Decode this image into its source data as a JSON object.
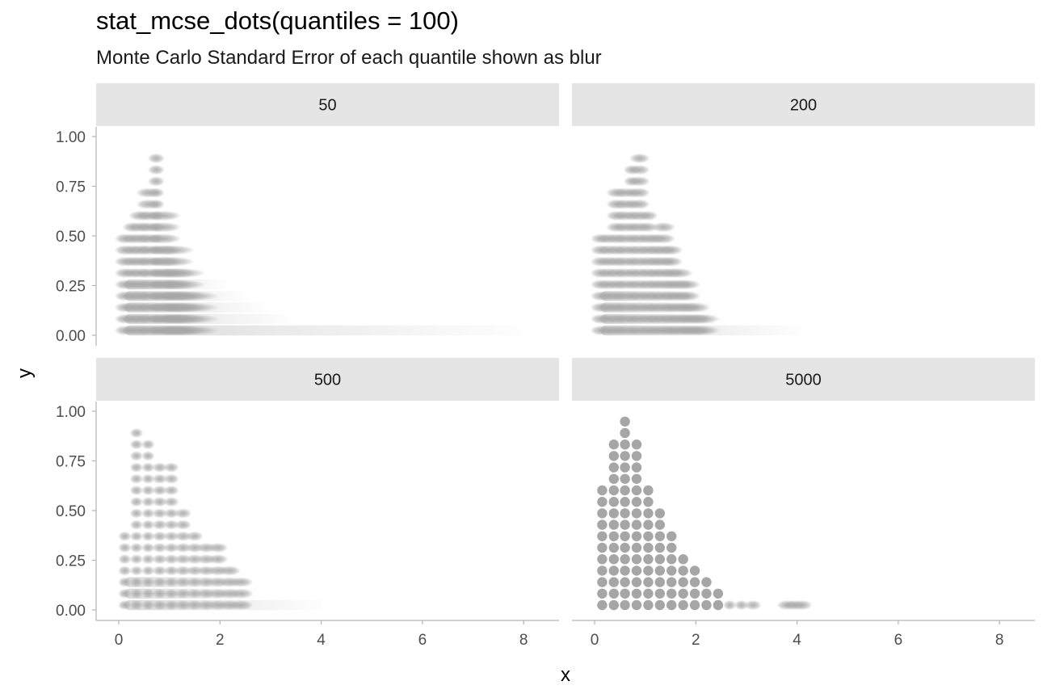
{
  "title": "stat_mcse_dots(quantiles = 100)",
  "subtitle": "Monte Carlo Standard Error of each quantile shown as blur",
  "chart_data": {
    "type": "dotplot",
    "facets": [
      {
        "label": "50",
        "column_x": [
          0.12,
          0.27,
          0.43,
          0.58,
          0.74,
          0.89,
          1.05,
          1.2,
          1.36
        ],
        "column_counts": [
          9,
          10,
          11,
          13,
          16,
          11,
          8,
          6,
          4
        ],
        "column_blur": [
          0.3,
          0.3,
          0.4,
          0.4,
          0.2,
          0.7,
          1.0,
          1.2,
          1.5
        ],
        "tail_rows": [
          {
            "row": 0,
            "x_end": 8.3
          },
          {
            "row": 1,
            "x_end": 3.5
          },
          {
            "row": 2,
            "x_end": 3.0
          },
          {
            "row": 3,
            "x_end": 2.6
          },
          {
            "row": 4,
            "x_end": 2.2
          }
        ]
      },
      {
        "label": "200",
        "column_x": [
          0.12,
          0.27,
          0.43,
          0.58,
          0.74,
          0.89,
          1.05,
          1.2,
          1.36,
          1.51,
          1.67,
          1.82,
          1.98,
          2.13
        ],
        "column_counts": [
          9,
          9,
          13,
          13,
          15,
          16,
          11,
          9,
          10,
          8,
          6,
          5,
          3,
          2
        ],
        "column_blur": [
          0.3,
          0.3,
          0.3,
          0.3,
          0.2,
          0.3,
          0.3,
          0.3,
          0.4,
          0.4,
          0.5,
          0.5,
          0.6,
          0.7
        ],
        "tail_rows": [
          {
            "row": 0,
            "x_end": 4.3
          },
          {
            "row": 1,
            "x_end": 2.6
          },
          {
            "row": 2,
            "x_end": 2.4
          },
          {
            "row": 3,
            "x_end": 2.2
          }
        ]
      },
      {
        "label": "500",
        "column_x": [
          0.12,
          0.35,
          0.58,
          0.81,
          1.04,
          1.27,
          1.5,
          1.73,
          1.96,
          2.19,
          2.42
        ],
        "column_counts": [
          7,
          16,
          15,
          13,
          13,
          9,
          7,
          6,
          6,
          4,
          3
        ],
        "column_blur": [
          0.1,
          0.1,
          0.1,
          0.15,
          0.15,
          0.2,
          0.2,
          0.25,
          0.3,
          0.35,
          0.4
        ],
        "tail_rows": [
          {
            "row": 0,
            "x_end": 4.2
          },
          {
            "row": 1,
            "x_end": 2.8
          },
          {
            "row": 2,
            "x_end": 2.5
          }
        ]
      },
      {
        "label": "5000",
        "column_x": [
          0.15,
          0.38,
          0.6,
          0.83,
          1.06,
          1.29,
          1.52,
          1.75,
          1.98,
          2.21,
          2.44,
          2.67,
          2.9,
          3.13,
          3.8,
          3.95,
          4.1
        ],
        "column_counts": [
          11,
          15,
          17,
          15,
          11,
          9,
          7,
          5,
          4,
          3,
          2,
          1,
          1,
          1,
          1,
          1,
          1
        ],
        "column_blur": [
          0.02,
          0.02,
          0.02,
          0.02,
          0.02,
          0.03,
          0.03,
          0.04,
          0.05,
          0.06,
          0.08,
          0.1,
          0.12,
          0.2,
          0.3,
          0.3,
          0.3
        ],
        "tail_rows": []
      }
    ],
    "x_ticks": [
      0,
      2,
      4,
      6,
      8
    ],
    "y_ticks": [
      "0.00",
      "0.25",
      "0.50",
      "0.75",
      "1.00"
    ],
    "xlim": [
      -0.45,
      8.7
    ],
    "ylim": [
      -0.045,
      1.045
    ],
    "xlabel": "x",
    "ylabel": "y",
    "dot_color": "#a6a6a6",
    "strip_color": "#e5e5e5",
    "axis_color": "#b3b3b3"
  }
}
